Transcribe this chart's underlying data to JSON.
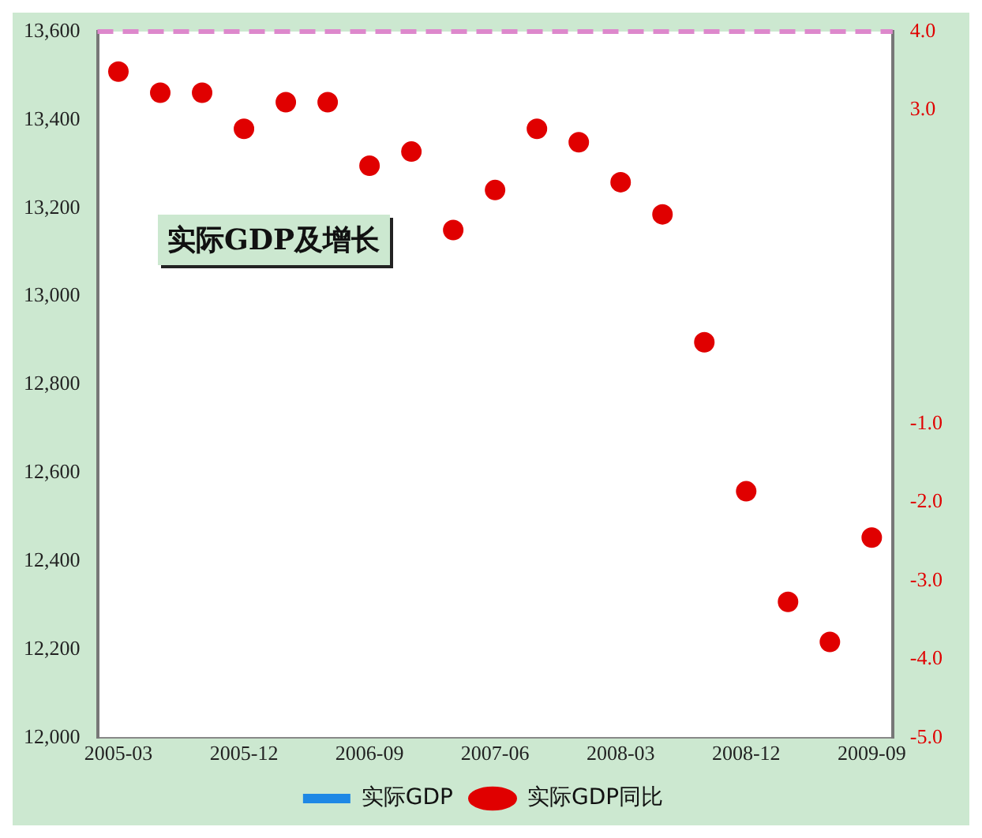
{
  "chart_data": {
    "type": "line",
    "title": "实际GDP及增长",
    "categories": [
      "2005-03",
      null,
      null,
      "2005-12",
      null,
      null,
      "2006-09",
      null,
      null,
      "2007-06",
      null,
      null,
      "2008-03",
      null,
      null,
      "2008-12",
      null,
      null,
      "2009-09"
    ],
    "series": [
      {
        "name": "实际GDP",
        "color": "#1e88e5",
        "values": [
          null,
          null,
          null,
          null,
          null,
          null,
          null,
          null,
          null,
          null,
          null,
          null,
          null,
          null,
          null,
          null,
          null,
          null,
          null
        ]
      },
      {
        "name": "实际GDP同比",
        "type": "scatter",
        "axis": "y2",
        "color": "#e00000",
        "marker": "circle",
        "values": [
          3.49,
          3.22,
          3.22,
          2.76,
          3.1,
          3.1,
          2.29,
          2.47,
          1.47,
          1.98,
          2.76,
          2.59,
          2.08,
          1.67,
          0.04,
          -1.86,
          -3.27,
          -3.78,
          -2.45
        ]
      }
    ],
    "ylim": [
      12000,
      13600
    ],
    "yticks": [
      {
        "value": 12000,
        "label": "12,000"
      },
      {
        "value": 12200,
        "label": "12,200"
      },
      {
        "value": 12400,
        "label": "12,400"
      },
      {
        "value": 12600,
        "label": "12,600"
      },
      {
        "value": 12800,
        "label": "12,800"
      },
      {
        "value": 13000,
        "label": "13,000"
      },
      {
        "value": 13200,
        "label": "13,200"
      },
      {
        "value": 13400,
        "label": "13,400"
      },
      {
        "value": 13600,
        "label": "13,600"
      }
    ],
    "y2lim": [
      -5,
      4
    ],
    "y2ticks": [
      {
        "value": 4,
        "label": "4.0"
      },
      {
        "value": 3,
        "label": "3.0"
      },
      {
        "value": -1,
        "label": "-1.0"
      },
      {
        "value": -2,
        "label": "-2.0"
      },
      {
        "value": -3,
        "label": "-3.0"
      },
      {
        "value": -4,
        "label": "-4.0"
      },
      {
        "value": -5,
        "label": "-5.0"
      }
    ],
    "ref_lines": [
      {
        "axis": "y",
        "value": 13600,
        "color": "#dd88cc",
        "line_style": "dashed"
      }
    ],
    "legend": "bottom"
  }
}
